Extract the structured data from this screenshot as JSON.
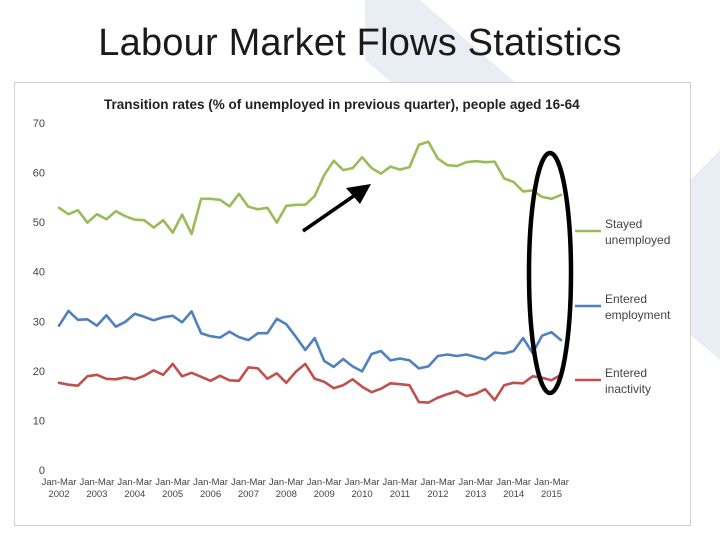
{
  "slide": {
    "title": "Labour Market Flows Statistics"
  },
  "colors": {
    "stayed_unemployed": "#9bbb59",
    "entered_employment": "#4f81bd",
    "entered_inactivity": "#c0504d",
    "annotation": "#000000",
    "background_shape": "#e9edf4"
  },
  "chart_data": {
    "type": "line",
    "title": "Transition rates (% of unemployed in previous quarter), people aged 16-64",
    "xlabel": "",
    "ylabel": "",
    "ylim": [
      0,
      70
    ],
    "yticks": [
      0,
      10,
      20,
      30,
      40,
      50,
      60,
      70
    ],
    "grid": false,
    "legend_position": "right",
    "x_tick_labels": [
      {
        "month": "Jan-Mar",
        "year": "2002"
      },
      {
        "month": "Jan-Mar",
        "year": "2003"
      },
      {
        "month": "Jan-Mar",
        "year": "2004"
      },
      {
        "month": "Jan-Mar",
        "year": "2005"
      },
      {
        "month": "Jan-Mar",
        "year": "2006"
      },
      {
        "month": "Jan-Mar",
        "year": "2007"
      },
      {
        "month": "Jan-Mar",
        "year": "2008"
      },
      {
        "month": "Jan-Mar",
        "year": "2009"
      },
      {
        "month": "Jan-Mar",
        "year": "2010"
      },
      {
        "month": "Jan-Mar",
        "year": "2011"
      },
      {
        "month": "Jan-Mar",
        "year": "2012"
      },
      {
        "month": "Jan-Mar",
        "year": "2013"
      },
      {
        "month": "Jan-Mar",
        "year": "2014"
      },
      {
        "month": "Jan-Mar",
        "year": "2015"
      }
    ],
    "series": [
      {
        "name": "Stayed unemployed",
        "legend_lines": [
          "Stayed",
          "unemployed"
        ],
        "values": [
          52.9,
          51.6,
          52.4,
          49.9,
          51.6,
          50.6,
          52.2,
          51.2,
          50.5,
          50.4,
          48.9,
          50.4,
          47.9,
          51.5,
          47.6,
          54.7,
          54.7,
          54.5,
          53.2,
          55.7,
          53.1,
          52.6,
          52.9,
          49.9,
          53.3,
          53.5,
          53.5,
          55.3,
          59.5,
          62.4,
          60.5,
          60.9,
          63.1,
          60.9,
          59.8,
          61.2,
          60.6,
          61.1,
          65.6,
          66.2,
          62.8,
          61.5,
          61.3,
          62.1,
          62.3,
          62.1,
          62.2,
          58.8,
          58.1,
          56.2,
          56.4,
          55.1,
          54.7,
          55.5
        ]
      },
      {
        "name": "Entered employment",
        "legend_lines": [
          "Entered",
          "employment"
        ],
        "values": [
          29.1,
          32.1,
          30.3,
          30.4,
          29.1,
          31.2,
          28.9,
          29.9,
          31.5,
          30.9,
          30.2,
          30.8,
          31.1,
          29.8,
          32.0,
          27.6,
          27.0,
          26.7,
          27.9,
          26.8,
          26.2,
          27.6,
          27.6,
          30.5,
          29.4,
          26.9,
          24.2,
          26.6,
          22.0,
          20.8,
          22.4,
          20.9,
          19.9,
          23.4,
          24.0,
          22.1,
          22.5,
          22.1,
          20.5,
          20.9,
          23.0,
          23.3,
          23.0,
          23.3,
          22.8,
          22.3,
          23.7,
          23.5,
          24.0,
          26.6,
          23.6,
          27.1,
          27.8,
          26.2
        ]
      },
      {
        "name": "Entered inactivity",
        "legend_lines": [
          "Entered",
          "inactivity"
        ],
        "values": [
          17.6,
          17.2,
          17.0,
          18.9,
          19.2,
          18.4,
          18.3,
          18.7,
          18.3,
          19.0,
          20.1,
          19.2,
          21.4,
          18.9,
          19.6,
          18.8,
          18.0,
          19.0,
          18.1,
          18.0,
          20.7,
          20.5,
          18.4,
          19.5,
          17.6,
          19.8,
          21.4,
          18.4,
          17.8,
          16.5,
          17.1,
          18.3,
          16.8,
          15.7,
          16.4,
          17.5,
          17.3,
          17.1,
          13.7,
          13.6,
          14.6,
          15.3,
          15.9,
          14.9,
          15.4,
          16.3,
          14.1,
          17.1,
          17.6,
          17.5,
          18.9,
          18.6,
          18.1,
          19.2
        ]
      }
    ]
  }
}
